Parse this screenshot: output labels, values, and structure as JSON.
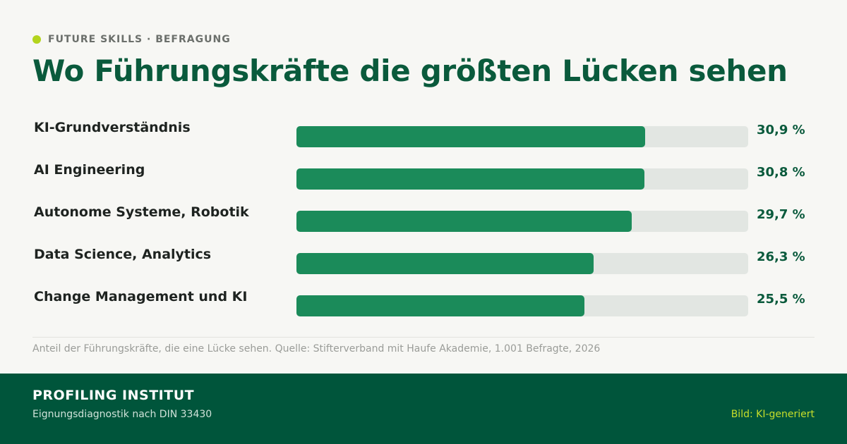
{
  "eyebrow": "FUTURE SKILLS · BEFRAGUNG",
  "title": "Wo Führungskräfte die größten Lücken sehen",
  "chart_data": {
    "type": "bar",
    "orientation": "horizontal",
    "title": "Wo Führungskräfte die größten Lücken sehen",
    "categories": [
      "KI-Grundverständnis",
      "AI Engineering",
      "Autonome Systeme, Robotik",
      "Data Science, Analytics",
      "Change Management und KI"
    ],
    "values": [
      30.9,
      30.8,
      29.7,
      26.3,
      25.5
    ],
    "value_labels": [
      "30,9 %",
      "30,8 %",
      "29,7 %",
      "26,3 %",
      "25,5 %"
    ],
    "xlim": [
      0,
      40
    ],
    "unit": "%"
  },
  "colors": {
    "accent": "#b3d41d",
    "bar": "#1b8b5a",
    "track": "#e2e6e2",
    "title": "#0a5a3c",
    "footer": "#00553b"
  },
  "note": "Anteil der Führungskräfte, die eine Lücke sehen. Quelle: Stifterverband mit Haufe Akademie, 1.001 Befragte, 2026",
  "footer": {
    "brand": "PROFILING INSTITUT",
    "tagline": "Eignungsdiagnostik nach DIN 33430",
    "credit": "Bild: KI-generiert"
  }
}
